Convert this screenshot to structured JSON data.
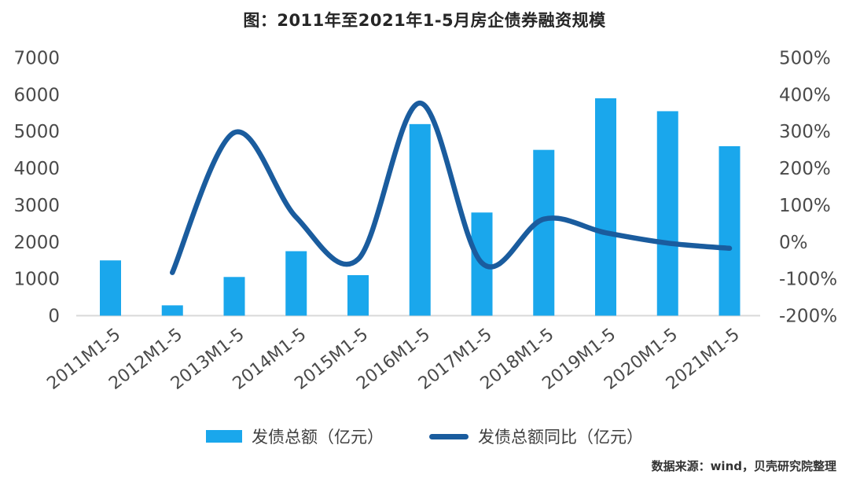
{
  "page": {
    "title": "图：2011年至2021年1-5月房企债券融资规模",
    "source": "数据来源：wind，贝壳研究院整理"
  },
  "legend": {
    "bar_label": "发债总额（亿元）",
    "line_label": "发债总额同比（亿元）"
  },
  "colors": {
    "bar": "#1AA7EC",
    "line": "#1A5C9E",
    "axis_text": "#4a4a4a",
    "axis_line": "#d9d9d9",
    "title_text": "#262626"
  },
  "chart_data": {
    "type": "bar",
    "subtype": "bar-with-line-overlay",
    "title": "图：2011年至2021年1-5月房企债券融资规模",
    "categories": [
      "2011M1-5",
      "2012M1-5",
      "2013M1-5",
      "2014M1-5",
      "2015M1-5",
      "2016M1-5",
      "2017M1-5",
      "2018M1-5",
      "2019M1-5",
      "2020M1-5",
      "2021M1-5"
    ],
    "series": [
      {
        "name": "发债总额（亿元）",
        "type": "bar",
        "axis": "left",
        "unit": "亿元",
        "values": [
          1500,
          280,
          1050,
          1750,
          1100,
          5200,
          2800,
          4500,
          5900,
          5550,
          4600
        ]
      },
      {
        "name": "发债总额同比（亿元）",
        "type": "line",
        "axis": "right",
        "unit": "%",
        "smooth": true,
        "values": [
          null,
          -83,
          297,
          67,
          -47,
          377,
          -57,
          62,
          25,
          -3,
          -17
        ]
      }
    ],
    "left_axis": {
      "min": 0,
      "max": 7000,
      "step": 1000,
      "ticks": [
        "0",
        "1000",
        "2000",
        "3000",
        "4000",
        "5000",
        "6000",
        "7000"
      ]
    },
    "right_axis": {
      "min": -200,
      "max": 500,
      "step": 100,
      "format": "percent",
      "ticks": [
        "-200%",
        "-100%",
        "0%",
        "100%",
        "200%",
        "300%",
        "400%",
        "500%"
      ]
    },
    "grid": false,
    "legend_position": "bottom",
    "source": "数据来源：wind，贝壳研究院整理"
  }
}
